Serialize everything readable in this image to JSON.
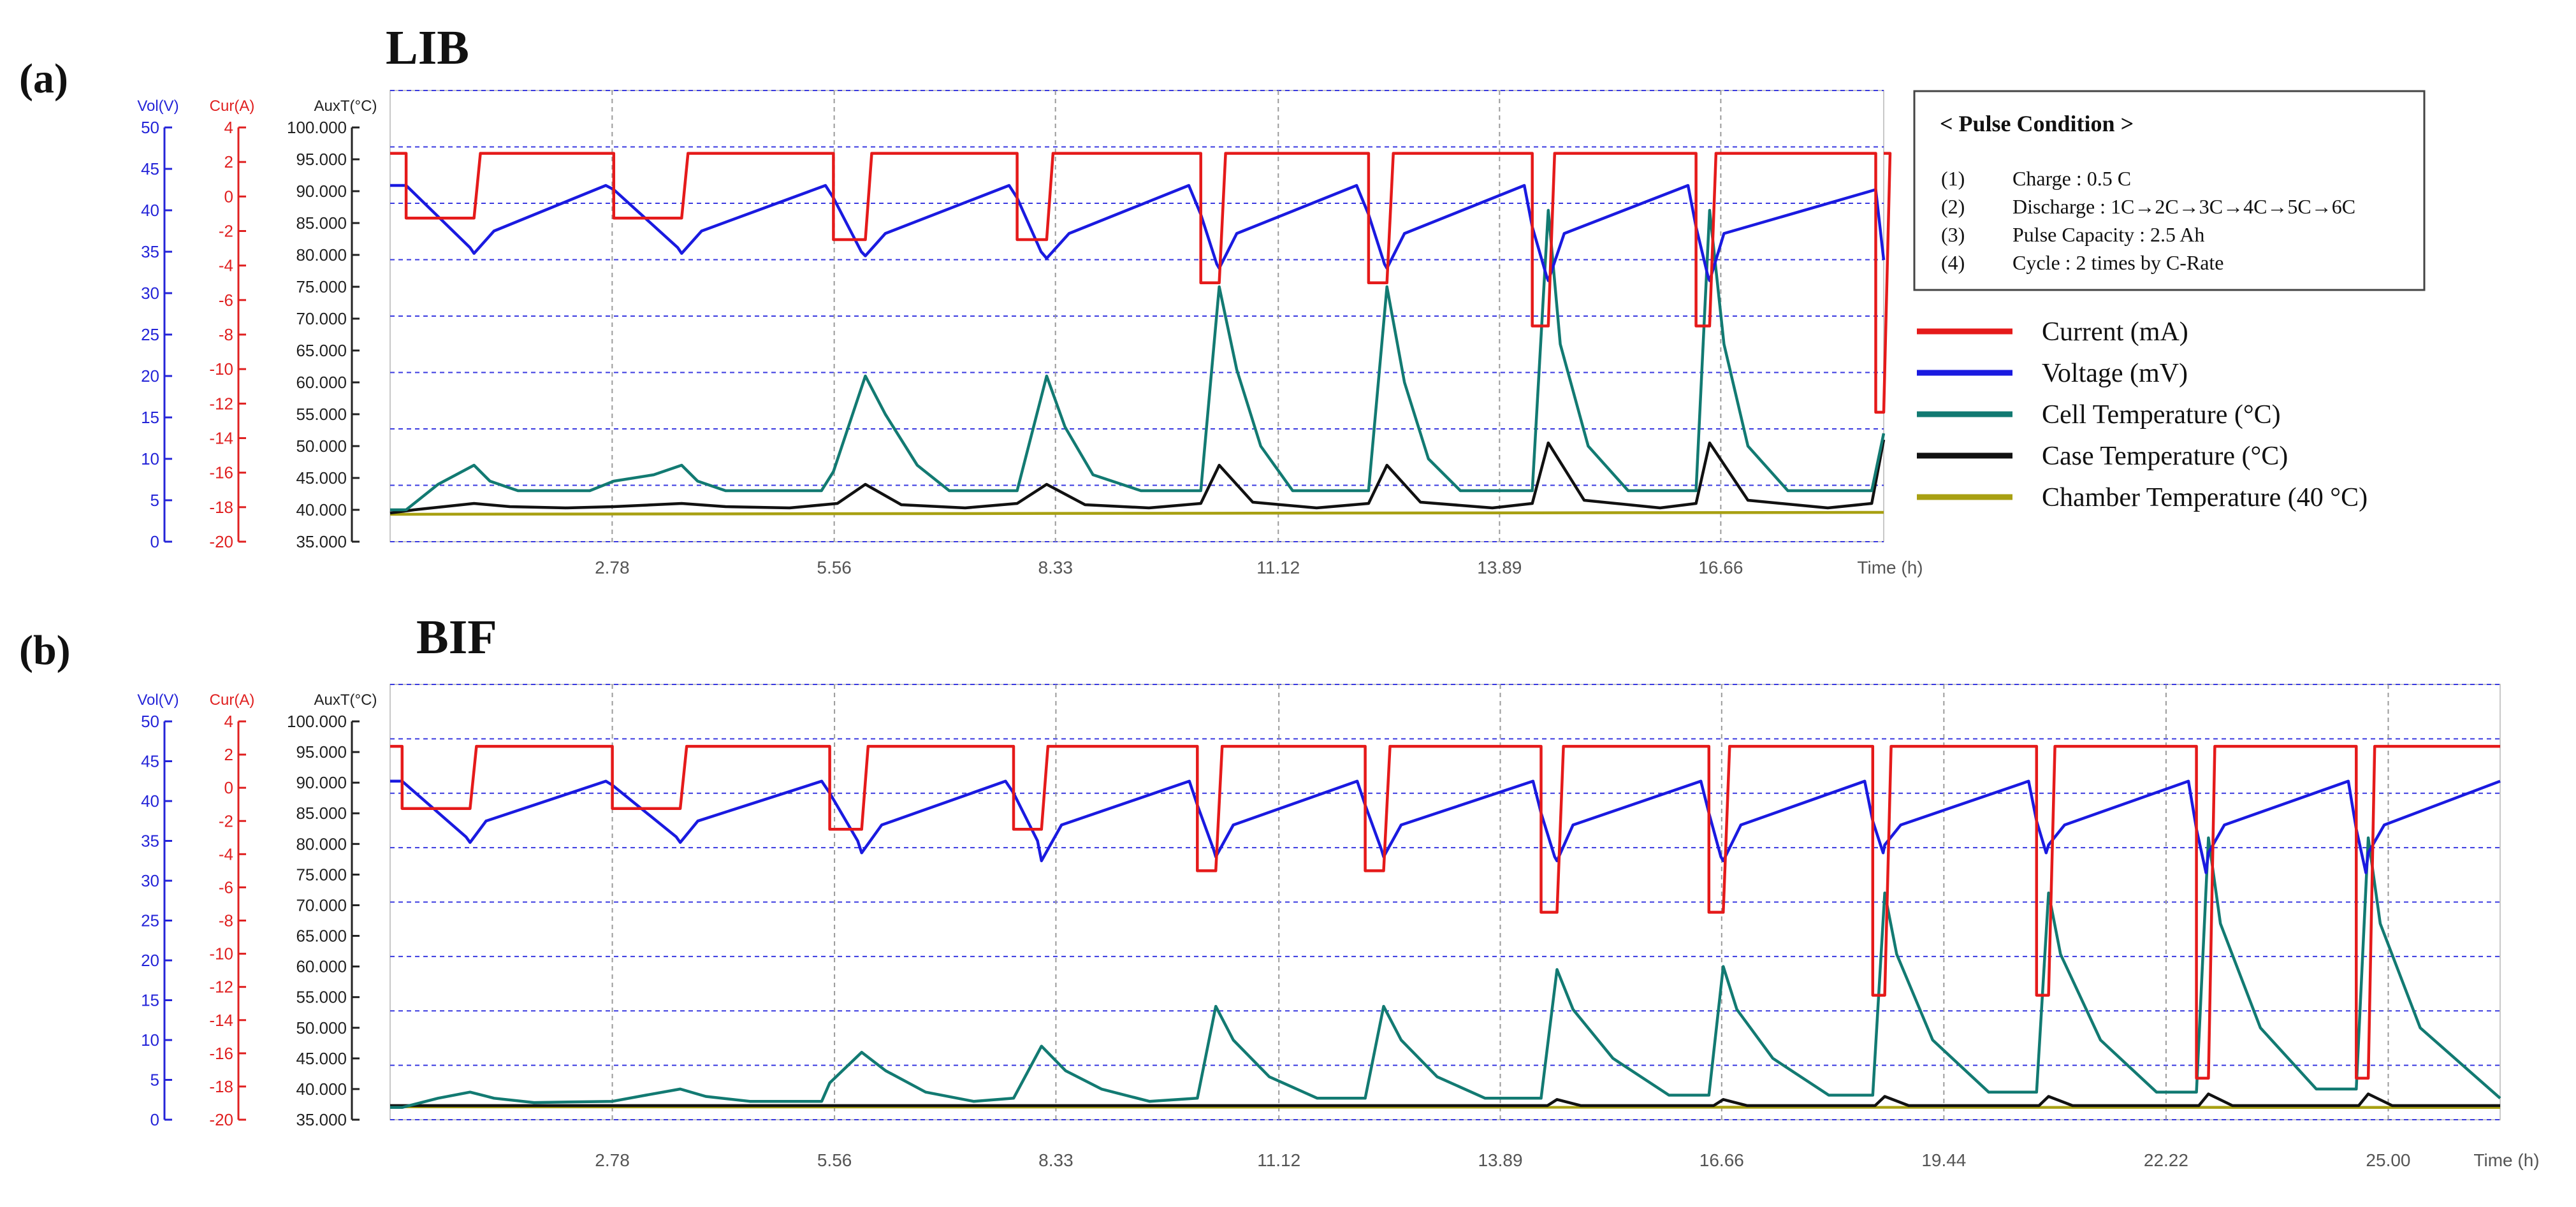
{
  "figure": {
    "panels": [
      {
        "id": "a",
        "panel_label": "(a)",
        "title": "LIB",
        "axis_headers": {
          "vol": "Vol(V)",
          "cur": "Cur(A)",
          "aux": "AuxT(°C)"
        },
        "vol_ticks": [
          "50",
          "45",
          "40",
          "35",
          "30",
          "25",
          "20",
          "15",
          "10",
          "5",
          "0"
        ],
        "cur_ticks": [
          "4",
          "2",
          "0",
          "-2",
          "-4",
          "-6",
          "-8",
          "-10",
          "-12",
          "-14",
          "-16",
          "-18",
          "-20"
        ],
        "aux_ticks": [
          "100.000",
          "95.000",
          "90.000",
          "85.000",
          "80.000",
          "75.000",
          "70.000",
          "65.000",
          "60.000",
          "55.000",
          "50.000",
          "45.000",
          "40.000",
          "35.000"
        ],
        "x_ticks": [
          "2.78",
          "5.56",
          "8.33",
          "11.12",
          "13.89",
          "16.66"
        ],
        "x_unit": "Time (h)"
      },
      {
        "id": "b",
        "panel_label": "(b)",
        "title": "BIF",
        "axis_headers": {
          "vol": "Vol(V)",
          "cur": "Cur(A)",
          "aux": "AuxT(°C)"
        },
        "vol_ticks": [
          "50",
          "45",
          "40",
          "35",
          "30",
          "25",
          "20",
          "15",
          "10",
          "5",
          "0"
        ],
        "cur_ticks": [
          "4",
          "2",
          "0",
          "-2",
          "-4",
          "-6",
          "-8",
          "-10",
          "-12",
          "-14",
          "-16",
          "-18",
          "-20"
        ],
        "aux_ticks": [
          "100.000",
          "95.000",
          "90.000",
          "85.000",
          "80.000",
          "75.000",
          "70.000",
          "65.000",
          "60.000",
          "55.000",
          "50.000",
          "45.000",
          "40.000",
          "35.000"
        ],
        "x_ticks": [
          "2.78",
          "5.56",
          "8.33",
          "11.12",
          "13.89",
          "16.66",
          "19.44",
          "22.22",
          "25.00"
        ],
        "x_unit": "Time (h)"
      }
    ],
    "info_box": {
      "heading": "< Pulse Condition >",
      "items": [
        {
          "num": "(1)",
          "text": "Charge : 0.5 C"
        },
        {
          "num": "(2)",
          "text": "Discharge : 1C→2C→3C→4C→5C→6C"
        },
        {
          "num": "(3)",
          "text": "Pulse Capacity : 2.5 Ah"
        },
        {
          "num": "(4)",
          "text": "Cycle : 2 times by C-Rate"
        }
      ]
    },
    "legend": [
      {
        "key": "current",
        "label": "Current (mA)",
        "color": "#e51a1a"
      },
      {
        "key": "voltage",
        "label": "Voltage (mV)",
        "color": "#1a1ae0"
      },
      {
        "key": "cell_temp",
        "label": "Cell Temperature (°C)",
        "color": "#127a72"
      },
      {
        "key": "case_temp",
        "label": "Case Temperature (°C)",
        "color": "#111111"
      },
      {
        "key": "chamber_temp",
        "label": "Chamber Temperature (40 °C)",
        "color": "#a8a012"
      }
    ],
    "colors": {
      "vol_axis": "#2424d8",
      "cur_axis": "#e02020",
      "aux_axis": "#222222",
      "grid_h": "#3a3ae0",
      "grid_v": "#9a9a9a",
      "x_tick": "#555555"
    }
  },
  "chart_data": [
    {
      "type": "line",
      "title": "LIB",
      "x_unit": "h",
      "xlim": [
        0,
        18.7
      ],
      "series": [
        {
          "name": "Current (mA)",
          "axis": "cur_A",
          "unit": "A",
          "charge_level": 2.5,
          "pulses": [
            {
              "start": 0.2,
              "end": 1.05,
              "level": -1.25
            },
            {
              "start": 2.8,
              "end": 3.65,
              "level": -1.25
            },
            {
              "start": 5.55,
              "end": 5.95,
              "level": -2.5
            },
            {
              "start": 7.85,
              "end": 8.22,
              "level": -2.5
            },
            {
              "start": 10.15,
              "end": 10.38,
              "level": -5.0
            },
            {
              "start": 12.25,
              "end": 12.48,
              "level": -5.0
            },
            {
              "start": 14.3,
              "end": 14.5,
              "level": -7.5
            },
            {
              "start": 16.35,
              "end": 16.52,
              "level": -7.5
            },
            {
              "start": 18.6,
              "end": 18.7,
              "level": -12.5
            }
          ]
        },
        {
          "name": "Voltage (mV)",
          "axis": "vol_V",
          "unit": "V",
          "x": [
            0.0,
            0.2,
            1.0,
            1.05,
            1.3,
            2.7,
            2.8,
            3.6,
            3.65,
            3.9,
            5.45,
            5.55,
            5.9,
            5.95,
            6.2,
            7.75,
            7.85,
            8.15,
            8.22,
            8.5,
            10.0,
            10.15,
            10.35,
            10.38,
            10.6,
            12.1,
            12.25,
            12.45,
            12.48,
            12.7,
            14.2,
            14.3,
            14.48,
            14.5,
            14.7,
            16.25,
            16.35,
            16.5,
            16.52,
            16.7,
            18.6,
            18.7
          ],
          "y": [
            43,
            43,
            35.5,
            34.8,
            37.5,
            43,
            42.5,
            35.5,
            34.8,
            37.5,
            43,
            41.5,
            35,
            34.5,
            37.2,
            43,
            41.5,
            35,
            34.2,
            37.2,
            43,
            39.5,
            33.5,
            33,
            37.2,
            43,
            39.5,
            33.5,
            33,
            37.2,
            43,
            38.0,
            32,
            31.5,
            37.2,
            43,
            38.0,
            32,
            31.5,
            37.2,
            42.5,
            34
          ]
        },
        {
          "name": "Cell Temperature (°C)",
          "axis": "aux_T",
          "unit": "°C",
          "x": [
            0.0,
            0.2,
            0.6,
            1.05,
            1.25,
            1.6,
            2.5,
            2.8,
            3.3,
            3.65,
            3.85,
            4.2,
            5.4,
            5.55,
            5.95,
            6.2,
            6.6,
            7.0,
            7.85,
            8.22,
            8.45,
            8.8,
            9.4,
            10.15,
            10.38,
            10.6,
            10.9,
            11.3,
            12.25,
            12.48,
            12.7,
            13.0,
            13.4,
            14.3,
            14.5,
            14.65,
            15.0,
            15.5,
            16.35,
            16.52,
            16.7,
            17.0,
            17.5,
            18.55,
            18.7
          ],
          "y": [
            40,
            40,
            44,
            47,
            44.5,
            43,
            43,
            44.5,
            45.5,
            47,
            44.5,
            43,
            43,
            46,
            61,
            55,
            47,
            43,
            43,
            61,
            53,
            45.5,
            43,
            43,
            75,
            62,
            50,
            43,
            43,
            75,
            60,
            48,
            43,
            43,
            87,
            66,
            50,
            43,
            43,
            87,
            66,
            50,
            43,
            43,
            52
          ]
        },
        {
          "name": "Case Temperature (°C)",
          "axis": "aux_T",
          "unit": "°C",
          "x": [
            0.0,
            0.3,
            1.05,
            1.5,
            2.2,
            2.8,
            3.65,
            4.2,
            5.0,
            5.6,
            5.95,
            6.4,
            7.2,
            7.85,
            8.22,
            8.7,
            9.5,
            10.15,
            10.38,
            10.8,
            11.6,
            12.25,
            12.48,
            12.9,
            13.8,
            14.3,
            14.5,
            14.95,
            15.9,
            16.35,
            16.52,
            17.0,
            18.0,
            18.55,
            18.7
          ],
          "y": [
            39.5,
            40,
            41,
            40.5,
            40.3,
            40.5,
            41,
            40.5,
            40.3,
            41,
            44,
            40.8,
            40.3,
            41,
            44,
            40.8,
            40.3,
            41,
            47,
            41.2,
            40.3,
            41,
            47,
            41.2,
            40.3,
            41,
            50.5,
            41.5,
            40.3,
            41,
            50.5,
            41.5,
            40.3,
            41,
            51
          ]
        },
        {
          "name": "Chamber Temperature (40 °C)",
          "axis": "aux_T",
          "unit": "°C",
          "x": [
            0.0,
            18.7
          ],
          "y": [
            39.3,
            39.6
          ]
        }
      ]
    },
    {
      "type": "line",
      "title": "BIF",
      "x_unit": "h",
      "xlim": [
        0,
        26.4
      ],
      "series": [
        {
          "name": "Current (mA)",
          "axis": "cur_A",
          "unit": "A",
          "charge_level": 2.5,
          "pulses": [
            {
              "start": 0.15,
              "end": 1.0,
              "level": -1.25
            },
            {
              "start": 2.78,
              "end": 3.63,
              "level": -1.25
            },
            {
              "start": 5.5,
              "end": 5.9,
              "level": -2.5
            },
            {
              "start": 7.8,
              "end": 8.15,
              "level": -2.5
            },
            {
              "start": 10.1,
              "end": 10.33,
              "level": -5.0
            },
            {
              "start": 12.2,
              "end": 12.43,
              "level": -5.0
            },
            {
              "start": 14.4,
              "end": 14.6,
              "level": -7.5
            },
            {
              "start": 16.5,
              "end": 16.68,
              "level": -7.5
            },
            {
              "start": 18.55,
              "end": 18.7,
              "level": -12.5
            },
            {
              "start": 20.6,
              "end": 20.75,
              "level": -12.5
            },
            {
              "start": 22.6,
              "end": 22.75,
              "level": -17.5
            },
            {
              "start": 24.6,
              "end": 24.75,
              "level": -17.5
            }
          ]
        },
        {
          "name": "Voltage (mV)",
          "axis": "vol_V",
          "unit": "V",
          "x": [
            0.0,
            0.15,
            0.95,
            1.0,
            1.2,
            2.7,
            2.78,
            3.58,
            3.63,
            3.85,
            5.4,
            5.5,
            5.85,
            5.9,
            6.15,
            7.7,
            7.8,
            8.1,
            8.15,
            8.4,
            10.0,
            10.1,
            10.3,
            10.33,
            10.55,
            12.1,
            12.2,
            12.4,
            12.43,
            12.65,
            14.3,
            14.4,
            14.57,
            14.6,
            14.8,
            16.4,
            16.5,
            16.65,
            16.68,
            16.9,
            18.45,
            18.55,
            18.68,
            18.7,
            18.9,
            20.5,
            20.6,
            20.72,
            20.75,
            20.95,
            22.5,
            22.6,
            22.72,
            22.75,
            22.95,
            24.5,
            24.6,
            24.72,
            24.75,
            24.95,
            26.4
          ],
          "y": [
            42.5,
            42.5,
            35.5,
            34.8,
            37.5,
            42.5,
            42,
            35.5,
            34.8,
            37.5,
            42.5,
            41,
            35,
            33.5,
            37,
            42.5,
            41,
            35,
            32.5,
            37,
            42.5,
            39.5,
            34,
            33,
            37,
            42.5,
            39.5,
            34,
            33,
            37,
            42.5,
            38.5,
            33,
            32.5,
            37,
            42.5,
            38.5,
            33,
            32.5,
            37,
            42.5,
            37.5,
            33.5,
            34.5,
            37,
            42.5,
            37.5,
            33.5,
            34.5,
            37,
            42.5,
            36.5,
            31,
            33.5,
            37,
            42.5,
            36.5,
            31,
            33.5,
            37,
            42.5
          ]
        },
        {
          "name": "Cell Temperature (°C)",
          "axis": "aux_T",
          "unit": "°C",
          "x": [
            0.0,
            0.15,
            0.6,
            1.0,
            1.3,
            1.8,
            2.78,
            3.2,
            3.63,
            3.95,
            4.5,
            5.4,
            5.5,
            5.9,
            6.2,
            6.7,
            7.3,
            7.8,
            8.15,
            8.45,
            8.9,
            9.5,
            10.1,
            10.33,
            10.55,
            11.0,
            11.6,
            12.2,
            12.43,
            12.65,
            13.1,
            13.7,
            14.4,
            14.6,
            14.8,
            15.3,
            16.0,
            16.5,
            16.68,
            16.85,
            17.3,
            18.0,
            18.55,
            18.7,
            18.85,
            19.3,
            20.0,
            20.6,
            20.75,
            20.9,
            21.4,
            22.1,
            22.6,
            22.75,
            22.9,
            23.4,
            24.1,
            24.6,
            24.75,
            24.9,
            25.4,
            26.4
          ],
          "y": [
            37,
            37,
            38.5,
            39.5,
            38.5,
            37.8,
            38,
            39,
            40,
            38.8,
            38,
            38,
            41,
            46,
            43,
            39.5,
            38,
            38.5,
            47,
            43,
            40,
            38,
            38.5,
            53.5,
            48,
            42,
            38.5,
            38.5,
            53.5,
            48,
            42,
            38.5,
            38.5,
            59.5,
            53,
            45,
            39,
            39,
            60,
            53,
            45,
            39,
            39,
            72,
            62,
            48,
            39.5,
            39.5,
            72,
            62,
            48,
            39.5,
            39.5,
            81,
            67,
            50,
            40,
            40,
            81,
            67,
            50,
            38.5
          ]
        },
        {
          "name": "Case Temperature (°C)",
          "axis": "aux_T",
          "unit": "°C",
          "x": [
            0.0,
            26.4
          ],
          "y": [
            37.3,
            37.3
          ],
          "bumps": [
            {
              "x": 14.6,
              "y": 38.3
            },
            {
              "x": 16.68,
              "y": 38.3
            },
            {
              "x": 18.7,
              "y": 38.8
            },
            {
              "x": 20.75,
              "y": 38.8
            },
            {
              "x": 22.75,
              "y": 39.2
            },
            {
              "x": 24.75,
              "y": 39.2
            }
          ]
        },
        {
          "name": "Chamber Temperature (40 °C)",
          "axis": "aux_T",
          "unit": "°C",
          "x": [
            0.0,
            26.4
          ],
          "y": [
            37.1,
            37.0
          ]
        }
      ]
    }
  ]
}
